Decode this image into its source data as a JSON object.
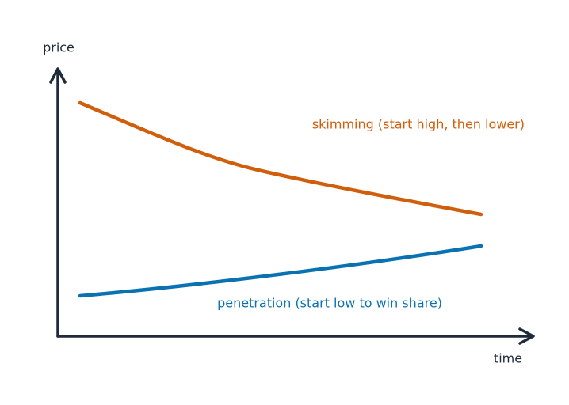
{
  "axes": {
    "y_label": "price",
    "x_label": "time"
  },
  "curves": [
    {
      "label": "skimming (start high, then lower)"
    },
    {
      "label": "penetration (start low to win share)"
    }
  ]
}
